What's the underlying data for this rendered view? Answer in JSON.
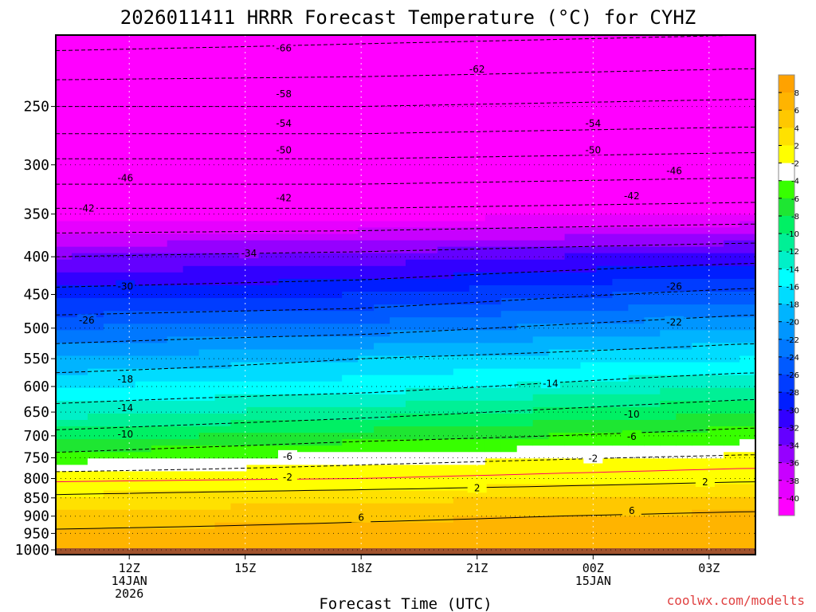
{
  "chart_data": {
    "type": "heatmap",
    "title": "2026011411 HRRR Forecast Temperature (°C) for CYHZ",
    "xlabel": "Forecast Time (UTC)",
    "ylabel": "",
    "y_axis": {
      "scale": "log",
      "direction": "pressure decreasing upward",
      "ticks": [
        250,
        300,
        350,
        400,
        450,
        500,
        550,
        600,
        650,
        700,
        750,
        800,
        850,
        900,
        950,
        1000
      ],
      "range": [
        1015,
        200
      ]
    },
    "x_axis": {
      "unit": "hours from 2026-01-14 12Z",
      "range": [
        -1.9,
        16.2
      ],
      "ticks": [
        {
          "x": 0,
          "lines": [
            "12Z",
            "14JAN",
            "2026"
          ]
        },
        {
          "x": 3,
          "lines": [
            "15Z"
          ]
        },
        {
          "x": 6,
          "lines": [
            "18Z"
          ]
        },
        {
          "x": 9,
          "lines": [
            "21Z"
          ]
        },
        {
          "x": 12,
          "lines": [
            "00Z",
            "15JAN"
          ]
        },
        {
          "x": 15,
          "lines": [
            "03Z"
          ]
        }
      ]
    },
    "temperature_profile_at_x": [
      {
        "x": -2,
        "levels": [
          {
            "p": 200,
            "t": -68
          },
          {
            "p": 250,
            "t": -58
          },
          {
            "p": 300,
            "t": -49
          },
          {
            "p": 350,
            "t": -41
          },
          {
            "p": 400,
            "t": -34
          },
          {
            "p": 450,
            "t": -29
          },
          {
            "p": 500,
            "t": -24
          },
          {
            "p": 550,
            "t": -20
          },
          {
            "p": 600,
            "t": -16
          },
          {
            "p": 650,
            "t": -13
          },
          {
            "p": 700,
            "t": -9
          },
          {
            "p": 750,
            "t": -5
          },
          {
            "p": 800,
            "t": -0.5
          },
          {
            "p": 850,
            "t": 2.5
          },
          {
            "p": 900,
            "t": 4.5
          },
          {
            "p": 950,
            "t": 6.5
          },
          {
            "p": 1000,
            "t": 7
          }
        ]
      },
      {
        "x": 6,
        "levels": [
          {
            "p": 200,
            "t": -67
          },
          {
            "p": 250,
            "t": -58
          },
          {
            "p": 300,
            "t": -49
          },
          {
            "p": 350,
            "t": -41
          },
          {
            "p": 400,
            "t": -33
          },
          {
            "p": 450,
            "t": -28
          },
          {
            "p": 500,
            "t": -23
          },
          {
            "p": 550,
            "t": -18
          },
          {
            "p": 600,
            "t": -15
          },
          {
            "p": 650,
            "t": -11
          },
          {
            "p": 700,
            "t": -7
          },
          {
            "p": 750,
            "t": -3
          },
          {
            "p": 800,
            "t": 0
          },
          {
            "p": 850,
            "t": 3.5
          },
          {
            "p": 900,
            "t": 5.5
          },
          {
            "p": 950,
            "t": 7
          },
          {
            "p": 1000,
            "t": 7.5
          }
        ]
      },
      {
        "x": 16,
        "levels": [
          {
            "p": 200,
            "t": -66
          },
          {
            "p": 250,
            "t": -57
          },
          {
            "p": 300,
            "t": -48
          },
          {
            "p": 350,
            "t": -40
          },
          {
            "p": 400,
            "t": -31
          },
          {
            "p": 450,
            "t": -25
          },
          {
            "p": 500,
            "t": -20
          },
          {
            "p": 550,
            "t": -16
          },
          {
            "p": 600,
            "t": -12
          },
          {
            "p": 650,
            "t": -8
          },
          {
            "p": 700,
            "t": -5
          },
          {
            "p": 750,
            "t": -1.5
          },
          {
            "p": 800,
            "t": 1.5
          },
          {
            "p": 850,
            "t": 4.5
          },
          {
            "p": 900,
            "t": 6.5
          },
          {
            "p": 950,
            "t": 7.5
          },
          {
            "p": 1000,
            "t": 7.5
          }
        ]
      }
    ],
    "surface_pressure_hpa": 995,
    "ground_color": "#a0522d",
    "contour_labels": [
      {
        "text": "-66",
        "x": 4.0,
        "p": 208
      },
      {
        "text": "-62",
        "x": 9.0,
        "p": 222
      },
      {
        "text": "-58",
        "x": 4.0,
        "p": 240
      },
      {
        "text": "-54",
        "x": 4.0,
        "p": 263
      },
      {
        "text": "-54",
        "x": 12.0,
        "p": 263
      },
      {
        "text": "-50",
        "x": 4.0,
        "p": 286
      },
      {
        "text": "-50",
        "x": 12.0,
        "p": 286
      },
      {
        "text": "-46",
        "x": -0.1,
        "p": 312
      },
      {
        "text": "-46",
        "x": 14.1,
        "p": 305
      },
      {
        "text": "-42",
        "x": -1.1,
        "p": 343
      },
      {
        "text": "-42",
        "x": 4.0,
        "p": 332
      },
      {
        "text": "-42",
        "x": 13.0,
        "p": 330
      },
      {
        "text": "-34",
        "x": 3.1,
        "p": 395
      },
      {
        "text": "-30",
        "x": -0.1,
        "p": 438
      },
      {
        "text": "-26",
        "x": -1.1,
        "p": 487
      },
      {
        "text": "-26",
        "x": 14.1,
        "p": 438
      },
      {
        "text": "-22",
        "x": 14.1,
        "p": 490
      },
      {
        "text": "-18",
        "x": -0.1,
        "p": 585
      },
      {
        "text": "-14",
        "x": -0.1,
        "p": 640
      },
      {
        "text": "-14",
        "x": 10.9,
        "p": 593
      },
      {
        "text": "-10",
        "x": -0.1,
        "p": 695
      },
      {
        "text": "-10",
        "x": 13.0,
        "p": 653
      },
      {
        "text": "-6",
        "x": 4.1,
        "p": 745
      },
      {
        "text": "-6",
        "x": 13.0,
        "p": 700
      },
      {
        "text": "-2",
        "x": 4.1,
        "p": 795
      },
      {
        "text": "-2",
        "x": 12.0,
        "p": 750
      },
      {
        "text": "2",
        "x": 9.0,
        "p": 822
      },
      {
        "text": "2",
        "x": 14.9,
        "p": 807
      },
      {
        "text": "6",
        "x": 6.0,
        "p": 902
      },
      {
        "text": "6",
        "x": 13.0,
        "p": 883
      }
    ],
    "legend": {
      "placement": "right",
      "labels": [
        "8",
        "6",
        "4",
        "2",
        "-2",
        "-4",
        "-6",
        "-8",
        "-10",
        "-12",
        "-14",
        "-16",
        "-18",
        "-20",
        "-22",
        "-24",
        "-26",
        "-28",
        "-30",
        "-32",
        "-34",
        "-36",
        "-38",
        "-40"
      ],
      "colors": [
        "#ffa200",
        "#ffb400",
        "#ffc800",
        "#ffe100",
        "#ffff00",
        "#ffffff",
        "#37ff00",
        "#1ee632",
        "#00f064",
        "#00f096",
        "#00f0c8",
        "#00ffff",
        "#00dcff",
        "#00b4ff",
        "#0096ff",
        "#0078ff",
        "#005aff",
        "#003cff",
        "#001eff",
        "#3200ff",
        "#6400ff",
        "#9600ff",
        "#c800ff",
        "#e600ff",
        "#ff00ff"
      ]
    },
    "credit": "coolwx.com/modelts"
  }
}
